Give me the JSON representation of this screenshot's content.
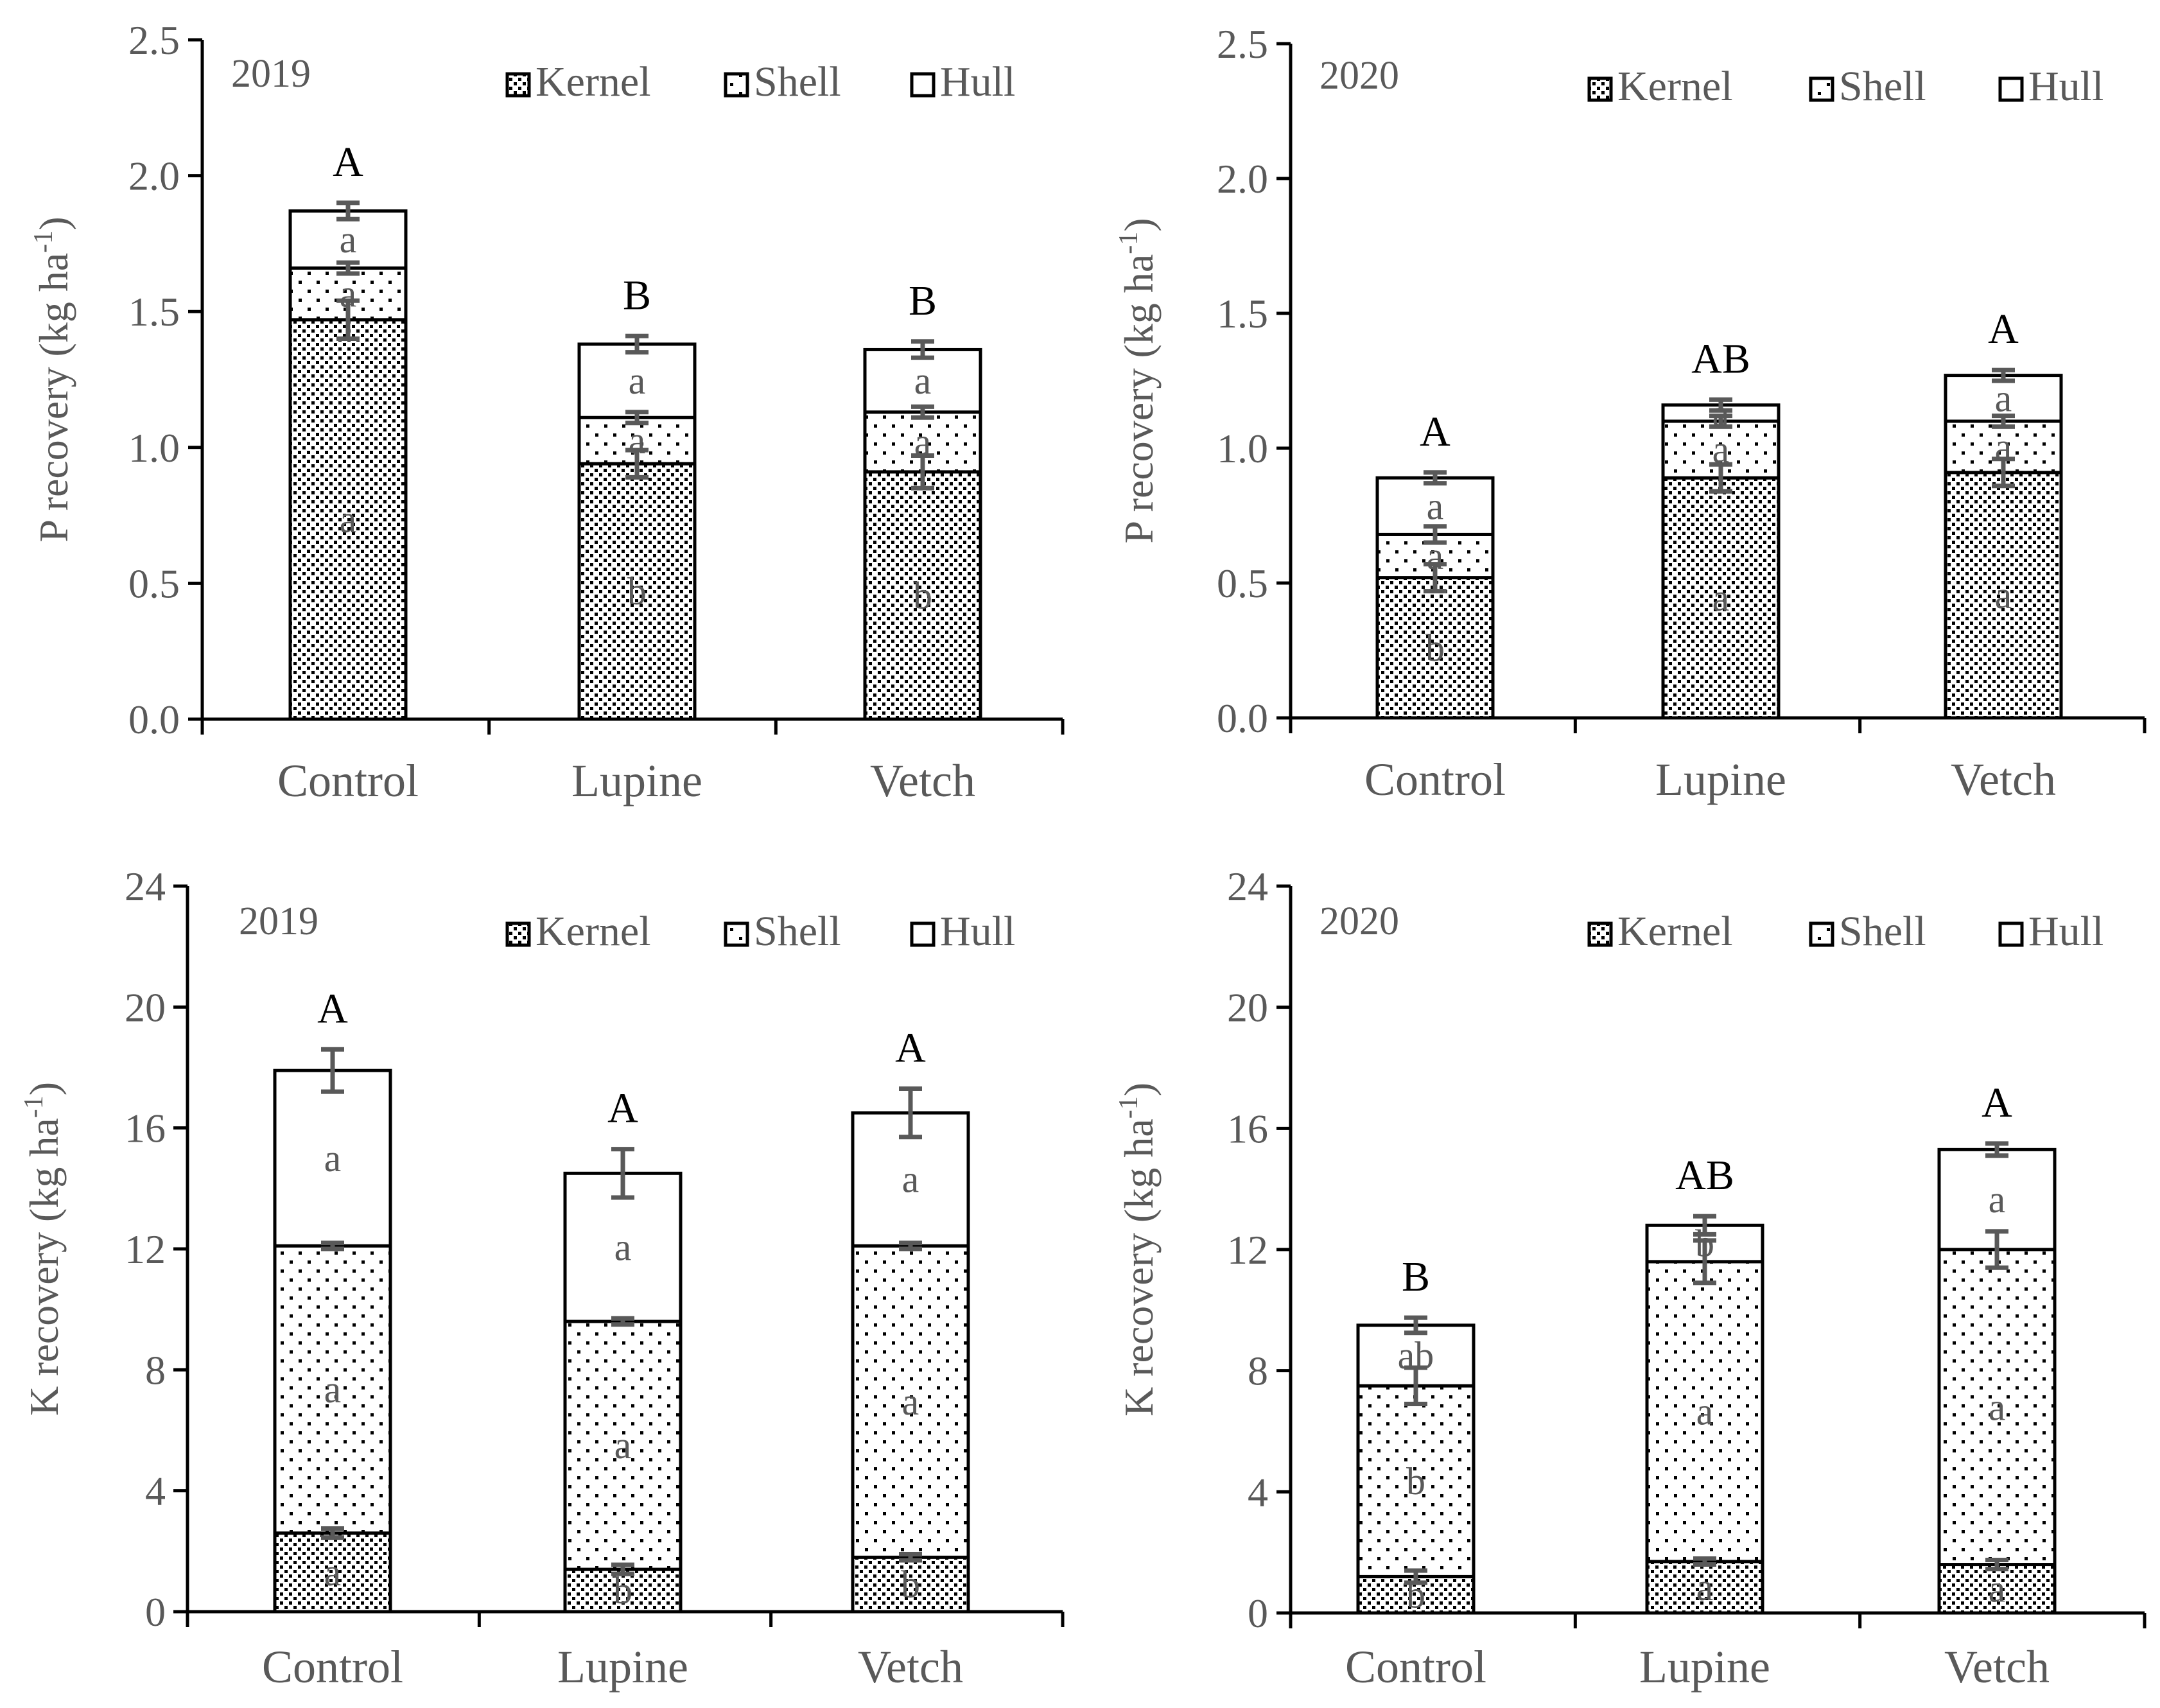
{
  "chart_data": [
    {
      "type": "bar",
      "stacked": true,
      "title": "2019",
      "ylabel": "P recovery (kg ha-1)",
      "ylabel_main": "P recovery (kg ha",
      "ylabel_sup": "-1",
      "ylabel_close": ")",
      "ylim": [
        0,
        2.5
      ],
      "yticks": [
        "0.0",
        "0.5",
        "1.0",
        "1.5",
        "2.0",
        "2.5"
      ],
      "categories": [
        "Control",
        "Lupine",
        "Vetch"
      ],
      "series": [
        {
          "name": "Kernel",
          "pattern": "dense",
          "values": [
            1.47,
            0.94,
            0.91
          ],
          "errors": [
            0.07,
            0.05,
            0.06
          ],
          "letters": [
            "a",
            "b",
            "b"
          ]
        },
        {
          "name": "Shell",
          "pattern": "sparse",
          "values": [
            0.19,
            0.17,
            0.22
          ],
          "errors": [
            0.02,
            0.02,
            0.02
          ],
          "letters": [
            "a",
            "a",
            "a"
          ]
        },
        {
          "name": "Hull",
          "pattern": "none",
          "values": [
            0.21,
            0.27,
            0.23
          ],
          "errors": [
            0.03,
            0.03,
            0.03
          ],
          "letters": [
            "a",
            "a",
            "a"
          ]
        }
      ],
      "total_letters": [
        "A",
        "B",
        "B"
      ]
    },
    {
      "type": "bar",
      "stacked": true,
      "title": "2020",
      "ylabel": "P recovery (kg ha-1)",
      "ylabel_main": "P recovery (kg ha",
      "ylabel_sup": "-1",
      "ylabel_close": ")",
      "ylim": [
        0,
        2.5
      ],
      "yticks": [
        "0.0",
        "0.5",
        "1.0",
        "1.5",
        "2.0",
        "2.5"
      ],
      "categories": [
        "Control",
        "Lupine",
        "Vetch"
      ],
      "series": [
        {
          "name": "Kernel",
          "pattern": "dense",
          "values": [
            0.52,
            0.89,
            0.91
          ],
          "errors": [
            0.05,
            0.05,
            0.05
          ],
          "letters": [
            "b",
            "a",
            "a"
          ]
        },
        {
          "name": "Shell",
          "pattern": "sparse",
          "values": [
            0.16,
            0.21,
            0.19
          ],
          "errors": [
            0.03,
            0.02,
            0.02
          ],
          "letters": [
            "a",
            "a",
            "a"
          ]
        },
        {
          "name": "Hull",
          "pattern": "none",
          "values": [
            0.21,
            0.06,
            0.17
          ],
          "errors": [
            0.02,
            0.02,
            0.02
          ],
          "letters": [
            "a",
            "a",
            "a"
          ]
        }
      ],
      "total_letters": [
        "A",
        "AB",
        "A"
      ]
    },
    {
      "type": "bar",
      "stacked": true,
      "title": "2019",
      "ylabel": "K recovery (kg ha-1)",
      "ylabel_main": "K recovery (kg ha",
      "ylabel_sup": "-1",
      "ylabel_close": ")",
      "ylim": [
        0,
        24
      ],
      "yticks": [
        "0",
        "4",
        "8",
        "12",
        "16",
        "20",
        "24"
      ],
      "categories": [
        "Control",
        "Lupine",
        "Vetch"
      ],
      "series": [
        {
          "name": "Kernel",
          "pattern": "dense",
          "values": [
            2.6,
            1.4,
            1.8
          ],
          "errors": [
            0.15,
            0.15,
            0.1
          ],
          "letters": [
            "a",
            "b",
            "b"
          ]
        },
        {
          "name": "Shell",
          "pattern": "sparse",
          "values": [
            9.5,
            8.2,
            10.3
          ],
          "errors": [
            0.1,
            0.1,
            0.1
          ],
          "letters": [
            "a",
            "a",
            "a"
          ]
        },
        {
          "name": "Hull",
          "pattern": "none",
          "values": [
            5.8,
            4.9,
            4.4
          ],
          "errors": [
            0.7,
            0.8,
            0.8
          ],
          "letters": [
            "a",
            "a",
            "a"
          ]
        }
      ],
      "total_letters": [
        "A",
        "A",
        "A"
      ]
    },
    {
      "type": "bar",
      "stacked": true,
      "title": "2020",
      "ylabel": "K recovery (kg ha-1)",
      "ylabel_main": "K recovery (kg ha",
      "ylabel_sup": "-1",
      "ylabel_close": ")",
      "ylim": [
        0,
        24
      ],
      "yticks": [
        "0",
        "4",
        "8",
        "12",
        "16",
        "20",
        "24"
      ],
      "categories": [
        "Control",
        "Lupine",
        "Vetch"
      ],
      "series": [
        {
          "name": "Kernel",
          "pattern": "dense",
          "values": [
            1.2,
            1.7,
            1.6
          ],
          "errors": [
            0.2,
            0.1,
            0.15
          ],
          "letters": [
            "b",
            "a",
            "a"
          ]
        },
        {
          "name": "Shell",
          "pattern": "sparse",
          "values": [
            6.3,
            9.9,
            10.4
          ],
          "errors": [
            0.6,
            0.7,
            0.6
          ],
          "letters": [
            "b",
            "a",
            "a"
          ]
        },
        {
          "name": "Hull",
          "pattern": "none",
          "values": [
            2.0,
            1.2,
            3.3
          ],
          "errors": [
            0.25,
            0.3,
            0.2
          ],
          "letters": [
            "ab",
            "b",
            "a"
          ]
        }
      ],
      "total_letters": [
        "B",
        "AB",
        "A"
      ]
    }
  ]
}
